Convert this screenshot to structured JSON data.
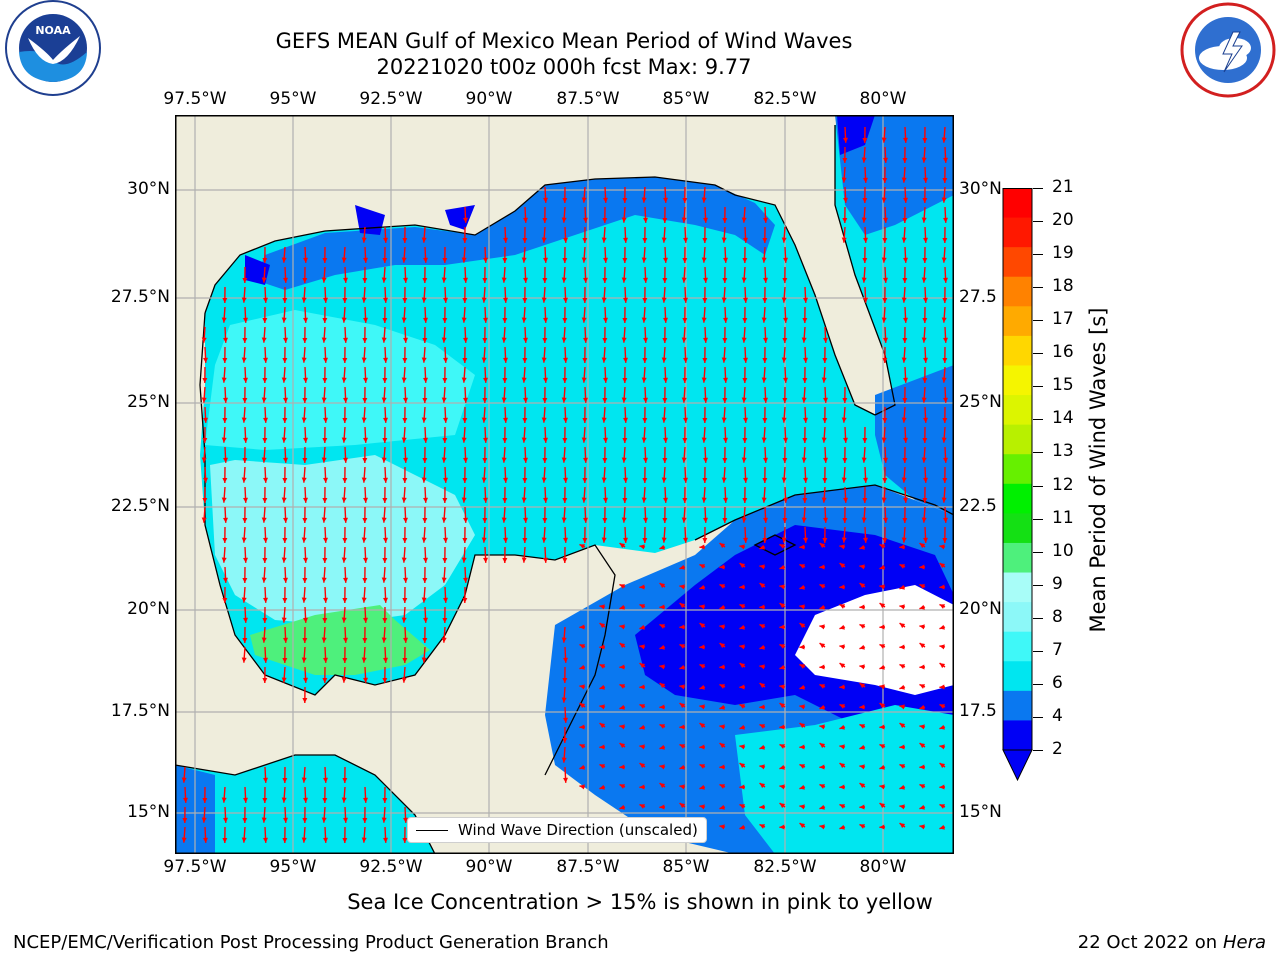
{
  "header": {
    "title_line1": "GEFS MEAN Gulf of Mexico Mean Period of Wind Waves",
    "title_line2": "20221020 t00z 000h fcst   Max: 9.77"
  },
  "logos": {
    "left": "NOAA",
    "right": "NATIONAL WEATHER SERVICE"
  },
  "map": {
    "lon_labels": [
      "97.5°W",
      "95°W",
      "92.5°W",
      "90°W",
      "87.5°W",
      "85°W",
      "82.5°W",
      "80°W"
    ],
    "lat_labels": [
      "30°N",
      "27.5°N",
      "25°N",
      "22.5°N",
      "20°N",
      "17.5°N",
      "15°N"
    ],
    "lat_labels_right": [
      "30°N",
      "27.5",
      "25°N",
      "22.5",
      "20°N",
      "17.5",
      "15°N"
    ],
    "legend_text": "Wind Wave Direction (unscaled)",
    "colors": {
      "land": "#efeddc",
      "grid": "#b0b0b0",
      "arrow": "#ff0000"
    }
  },
  "colorbar": {
    "label": "Mean Period of Wind Waves [s]",
    "ticks": [
      "2",
      "4",
      "6",
      "7",
      "8",
      "9",
      "10",
      "11",
      "12",
      "13",
      "14",
      "15",
      "16",
      "17",
      "18",
      "19",
      "20",
      "21"
    ],
    "colors": [
      "#0000f5",
      "#0a78f0",
      "#00e6f0",
      "#3ff8f8",
      "#8cf8f8",
      "#a8fdf8",
      "#4ef07c",
      "#14e014",
      "#00f000",
      "#66f000",
      "#b8f000",
      "#dcf500",
      "#f5f500",
      "#ffd700",
      "#ffaa00",
      "#ff8200",
      "#ff4800",
      "#ff1800",
      "#ff0000"
    ]
  },
  "footer": {
    "subtitle": "Sea Ice Concentration > 15% is shown in pink to yellow",
    "left": "NCEP/EMC/Verification Post Processing Product Generation Branch",
    "right_date": "22 Oct 2022 on",
    "right_host": "Hera"
  }
}
